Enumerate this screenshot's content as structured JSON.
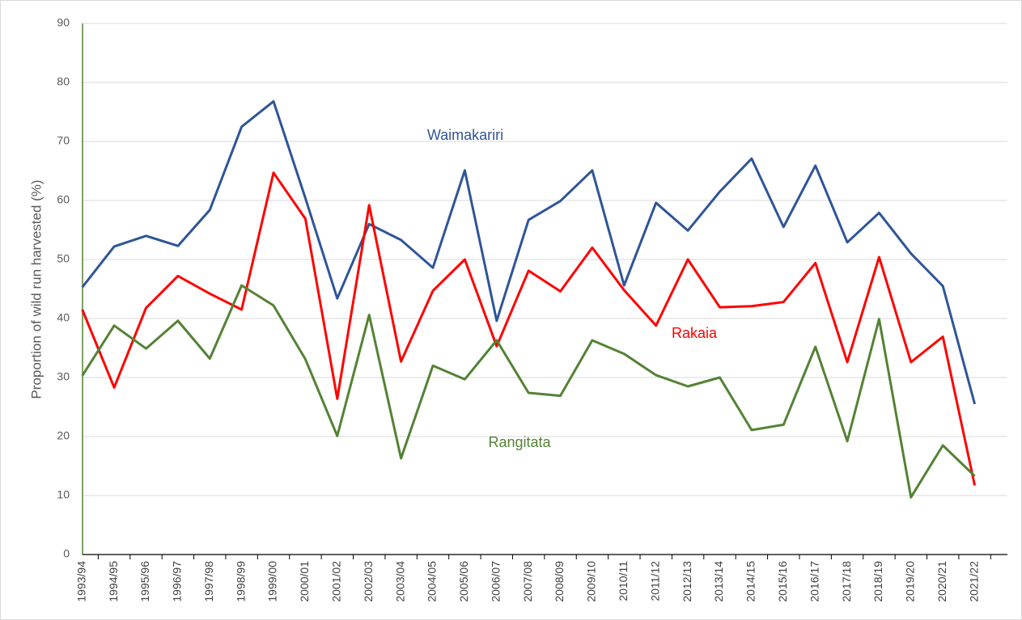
{
  "chart_data": {
    "type": "line",
    "y_label": "Proportion of wild run harvested (%)",
    "categories": [
      "1993/94",
      "1994/95",
      "1995/96",
      "1996/97",
      "1997/98",
      "1998/99",
      "1999/00",
      "2000/01",
      "2001/02",
      "2002/03",
      "2003/04",
      "2004/05",
      "2005/06",
      "2006/07",
      "2007/08",
      "2008/09",
      "2009/10",
      "2010/11",
      "2011/12",
      "2012/13",
      "2013/14",
      "2014/15",
      "2015/16",
      "2016/17",
      "2017/18",
      "2018/19",
      "2019/20",
      "2020/21",
      "2021/22"
    ],
    "series": [
      {
        "name": "Waimakariri",
        "color": "#2f5597",
        "values": [
          45.3,
          52.2,
          54.0,
          52.3,
          58.4,
          72.5,
          76.8,
          60.4,
          43.4,
          56.0,
          53.3,
          48.6,
          65.1,
          39.6,
          56.7,
          59.9,
          65.1,
          45.6,
          59.6,
          54.9,
          61.5,
          67.1,
          55.5,
          65.9,
          52.9,
          57.9,
          51.0,
          45.5,
          25.5
        ]
      },
      {
        "name": "Rakaia",
        "color": "#ff0000",
        "values": [
          41.5,
          28.3,
          41.8,
          47.2,
          44.2,
          41.5,
          64.7,
          56.9,
          26.4,
          59.2,
          32.7,
          44.7,
          50.0,
          35.3,
          48.1,
          44.6,
          52.0,
          44.8,
          38.8,
          50.0,
          41.9,
          42.1,
          42.8,
          49.4,
          32.6,
          50.4,
          32.6,
          36.9,
          11.7
        ]
      },
      {
        "name": "Rangitata",
        "color": "#548235",
        "values": [
          30.3,
          38.8,
          34.9,
          39.6,
          33.2,
          45.6,
          42.2,
          33.1,
          20.1,
          40.6,
          16.3,
          32.0,
          29.7,
          36.3,
          27.4,
          26.9,
          36.3,
          34.0,
          30.4,
          28.5,
          30.0,
          21.1,
          22.0,
          35.2,
          19.2,
          39.9,
          9.7,
          18.5,
          13.3
        ]
      }
    ],
    "ylim": [
      0,
      90
    ],
    "yticks": [
      0,
      10,
      20,
      30,
      40,
      50,
      60,
      70,
      80,
      90
    ],
    "grid": true
  }
}
